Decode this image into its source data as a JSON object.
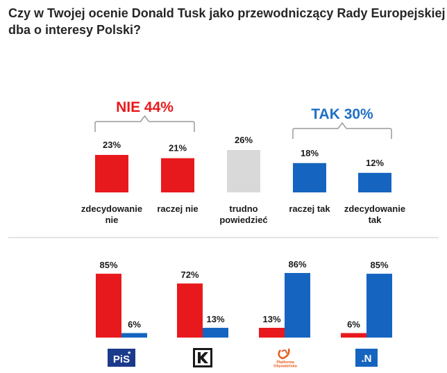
{
  "colors": {
    "red": "#e8191c",
    "blue": "#1565c0",
    "gray": "#d9d9d9",
    "nie": "#e8191c",
    "tak": "#1e6fc4",
    "logo_pis": "#1b3a8c",
    "logo_n": "#1565c0",
    "logo_po": "#e85a1c"
  },
  "chart_data": [
    {
      "type": "bar",
      "title": "Czy w Twojej ocenie Donald Tusk jako przewodniczący Rady Europejskiej dba o interesy Polski?",
      "title_lines": [
        "Czy w Twojej ocenie Donald Tusk jako przewodniczący Rady Europejskiej",
        "dba o interesy Polski?"
      ],
      "categories": [
        [
          "zdecydowanie",
          "nie"
        ],
        [
          "raczej nie"
        ],
        [
          "trudno",
          "powiedzieć"
        ],
        [
          "raczej tak"
        ],
        [
          "zdecydowanie",
          "tak"
        ]
      ],
      "values": [
        23,
        21,
        26,
        18,
        12
      ],
      "value_labels": [
        "23%",
        "21%",
        "26%",
        "18%",
        "12%"
      ],
      "bar_colors": [
        "red",
        "red",
        "gray",
        "blue",
        "blue"
      ],
      "groups": [
        {
          "label": "NIE 44%",
          "members": [
            0,
            1
          ],
          "color": "nie"
        },
        {
          "label": "TAK 30%",
          "members": [
            3,
            4
          ],
          "color": "tak"
        }
      ],
      "ylim": [
        0,
        26
      ]
    },
    {
      "type": "bar",
      "categories": [
        "PiS",
        "Kukiz'15",
        "Platforma Obywatelska",
        ".N"
      ],
      "series": [
        {
          "name": "NIE",
          "values": [
            85,
            72,
            13,
            6
          ],
          "labels": [
            "85%",
            "72%",
            "13%",
            "6%"
          ],
          "color": "red"
        },
        {
          "name": "TAK",
          "values": [
            6,
            13,
            86,
            85
          ],
          "labels": [
            "6%",
            "13%",
            "86%",
            "85%"
          ],
          "color": "blue"
        }
      ],
      "ylim": [
        0,
        86
      ]
    }
  ],
  "logos": {
    "pis": {
      "name": "pis-logo-icon",
      "text": "PiS"
    },
    "kukiz": {
      "name": "kukiz-logo-icon",
      "text": "K"
    },
    "po": {
      "name": "po-logo-icon",
      "text": "Platforma Obywatelska"
    },
    "n": {
      "name": "nowoczesna-logo-icon",
      "text": ".N"
    }
  }
}
